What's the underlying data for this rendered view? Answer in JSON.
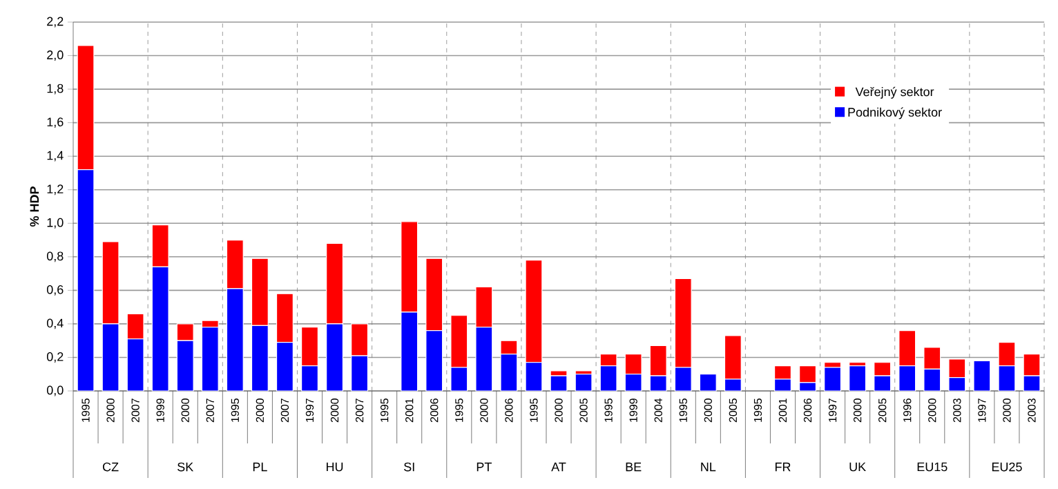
{
  "chart_data": {
    "type": "bar",
    "stacked": true,
    "ylabel": "% HDP",
    "categories": [
      "1995",
      "2000",
      "2007",
      "1999",
      "2000",
      "2007",
      "1995",
      "2000",
      "2007",
      "1997",
      "2000",
      "2007",
      "1995",
      "2001",
      "2006",
      "1995",
      "2000",
      "2006",
      "1995",
      "2000",
      "2005",
      "1995",
      "1999",
      "2004",
      "1995",
      "2000",
      "2005",
      "1995",
      "2001",
      "2006",
      "1997",
      "2000",
      "2005",
      "1996",
      "2000",
      "2003",
      "1997",
      "2000",
      "2003"
    ],
    "series": [
      {
        "name": "Podnikový sektor",
        "color": "#0000ff",
        "values": [
          1.32,
          0.4,
          0.31,
          0.74,
          0.3,
          0.38,
          0.61,
          0.39,
          0.29,
          0.15,
          0.4,
          0.21,
          null,
          0.47,
          0.36,
          0.14,
          0.38,
          0.22,
          0.17,
          0.09,
          0.1,
          0.15,
          0.1,
          0.09,
          0.14,
          0.1,
          0.07,
          null,
          0.07,
          0.05,
          0.14,
          0.15,
          0.09,
          0.15,
          0.13,
          0.08,
          0.18,
          0.15,
          0.09
        ]
      },
      {
        "name": "Veřejný sektor",
        "color": "#ff0000",
        "values": [
          0.74,
          0.49,
          0.15,
          0.25,
          0.1,
          0.04,
          0.29,
          0.4,
          0.29,
          0.23,
          0.48,
          0.19,
          null,
          0.54,
          0.43,
          0.31,
          0.24,
          0.08,
          0.61,
          0.03,
          0.02,
          0.07,
          0.12,
          0.18,
          0.53,
          null,
          0.26,
          null,
          0.08,
          0.1,
          0.03,
          0.02,
          0.08,
          0.21,
          0.13,
          0.11,
          null,
          0.14,
          0.13
        ]
      }
    ],
    "annotations": [
      {
        "text": "CZ"
      },
      {
        "text": "SK"
      },
      {
        "text": "PL"
      },
      {
        "text": "HU"
      },
      {
        "text": "SI"
      },
      {
        "text": "PT"
      },
      {
        "text": "AT"
      },
      {
        "text": "BE"
      },
      {
        "text": "NL"
      },
      {
        "text": "FR"
      },
      {
        "text": "UK"
      },
      {
        "text": "EU15"
      },
      {
        "text": "EU25"
      }
    ],
    "ylim": [
      0,
      2.2
    ],
    "yticks": [
      {
        "value": 0,
        "label": "0,0"
      },
      {
        "value": 0.2,
        "label": "0,2"
      },
      {
        "value": 0.4,
        "label": "0,4"
      },
      {
        "value": 0.6,
        "label": "0,6"
      },
      {
        "value": 0.8,
        "label": "0,8"
      },
      {
        "value": 1.0,
        "label": "1,0"
      },
      {
        "value": 1.2,
        "label": "1,2"
      },
      {
        "value": 1.4,
        "label": "1,4"
      },
      {
        "value": 1.6,
        "label": "1,6"
      },
      {
        "value": 1.8,
        "label": "1,8"
      },
      {
        "value": 2.0,
        "label": "2,0"
      },
      {
        "value": 2.2,
        "label": "2,2"
      }
    ],
    "grid": "y",
    "legend": "top right"
  }
}
